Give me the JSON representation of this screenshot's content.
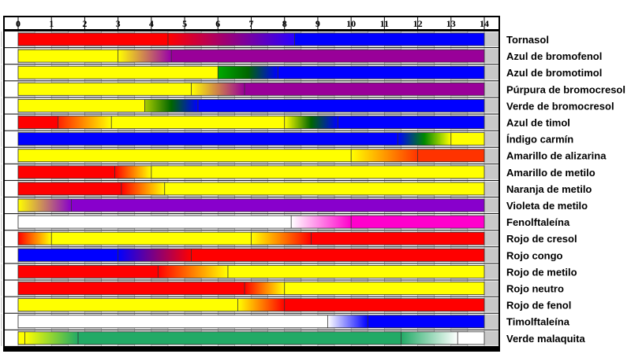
{
  "chart_data": {
    "type": "bar",
    "xlim": [
      0,
      14
    ],
    "xticks": [
      "0",
      "1",
      "2",
      "3",
      "4",
      "5",
      "6",
      "7",
      "8",
      "9",
      "10",
      "11",
      "12",
      "13",
      "14"
    ],
    "grid": true,
    "indicators": [
      {
        "name": "Tornasol",
        "segments": [
          {
            "from": 0,
            "to": 4.5,
            "colors": [
              "#ff0000"
            ]
          },
          {
            "from": 4.5,
            "to": 8.3,
            "colors": [
              "#ff0000",
              "#2a00ff"
            ]
          },
          {
            "from": 8.3,
            "to": 14,
            "colors": [
              "#0000ff"
            ]
          }
        ]
      },
      {
        "name": "Azul de bromofenol",
        "segments": [
          {
            "from": 0,
            "to": 3.0,
            "colors": [
              "#ffff00"
            ]
          },
          {
            "from": 3.0,
            "to": 4.6,
            "colors": [
              "#ffff00",
              "#9900aa"
            ]
          },
          {
            "from": 4.6,
            "to": 14,
            "colors": [
              "#990099"
            ]
          }
        ]
      },
      {
        "name": "Azul de bromotimol",
        "segments": [
          {
            "from": 0,
            "to": 6.0,
            "colors": [
              "#ffff00"
            ]
          },
          {
            "from": 6.0,
            "to": 7.8,
            "colors": [
              "#00aa00",
              "#006600",
              "#0000ff"
            ]
          },
          {
            "from": 7.8,
            "to": 14,
            "colors": [
              "#0000ff"
            ]
          }
        ]
      },
      {
        "name": "Púrpura de bromocresol",
        "segments": [
          {
            "from": 0,
            "to": 5.2,
            "colors": [
              "#ffff00"
            ]
          },
          {
            "from": 5.2,
            "to": 6.8,
            "colors": [
              "#ffff00",
              "#990099"
            ]
          },
          {
            "from": 6.8,
            "to": 14,
            "colors": [
              "#990099"
            ]
          }
        ]
      },
      {
        "name": "Verde de bromocresol",
        "segments": [
          {
            "from": 0,
            "to": 3.8,
            "colors": [
              "#ffff00"
            ]
          },
          {
            "from": 3.8,
            "to": 5.4,
            "colors": [
              "#aacc00",
              "#006600",
              "#0000ff"
            ]
          },
          {
            "from": 5.4,
            "to": 14,
            "colors": [
              "#0000ff"
            ]
          }
        ]
      },
      {
        "name": "Azul de timol",
        "segments": [
          {
            "from": 0,
            "to": 1.2,
            "colors": [
              "#ff0000"
            ]
          },
          {
            "from": 1.2,
            "to": 2.8,
            "colors": [
              "#ff2200",
              "#ffff00"
            ]
          },
          {
            "from": 2.8,
            "to": 8.0,
            "colors": [
              "#ffff00"
            ]
          },
          {
            "from": 8.0,
            "to": 9.6,
            "colors": [
              "#ffff00",
              "#006600",
              "#0000ff"
            ]
          },
          {
            "from": 9.6,
            "to": 14,
            "colors": [
              "#0000ff"
            ]
          }
        ]
      },
      {
        "name": "Índigo carmín",
        "segments": [
          {
            "from": 0,
            "to": 11.4,
            "colors": [
              "#0000ff"
            ]
          },
          {
            "from": 11.4,
            "to": 13.0,
            "colors": [
              "#0000ff",
              "#008800",
              "#ffff00"
            ]
          },
          {
            "from": 13.0,
            "to": 14,
            "colors": [
              "#ffff00"
            ]
          }
        ]
      },
      {
        "name": "Amarillo de alizarina",
        "segments": [
          {
            "from": 0,
            "to": 10.0,
            "colors": [
              "#ffff00"
            ]
          },
          {
            "from": 10.0,
            "to": 12.0,
            "colors": [
              "#ffff00",
              "#ff3300"
            ]
          },
          {
            "from": 12.0,
            "to": 14,
            "colors": [
              "#ff3300"
            ]
          }
        ]
      },
      {
        "name": "Amarillo de metilo",
        "segments": [
          {
            "from": 0,
            "to": 2.9,
            "colors": [
              "#ff0000"
            ]
          },
          {
            "from": 2.9,
            "to": 4.0,
            "colors": [
              "#ff0000",
              "#ffff00"
            ]
          },
          {
            "from": 4.0,
            "to": 14,
            "colors": [
              "#ffff00"
            ]
          }
        ]
      },
      {
        "name": "Naranja de metilo",
        "segments": [
          {
            "from": 0,
            "to": 3.1,
            "colors": [
              "#ff0000"
            ]
          },
          {
            "from": 3.1,
            "to": 4.4,
            "colors": [
              "#ff0000",
              "#ffff00"
            ]
          },
          {
            "from": 4.4,
            "to": 14,
            "colors": [
              "#ffff00"
            ]
          }
        ]
      },
      {
        "name": "Violeta de metilo",
        "segments": [
          {
            "from": 0,
            "to": 1.6,
            "colors": [
              "#ffff00",
              "#8800cc"
            ]
          },
          {
            "from": 1.6,
            "to": 14,
            "colors": [
              "#8800cc"
            ]
          }
        ]
      },
      {
        "name": "Fenolftaleína",
        "segments": [
          {
            "from": 0,
            "to": 8.2,
            "colors": [
              "#ffffff"
            ]
          },
          {
            "from": 8.2,
            "to": 10.0,
            "colors": [
              "#ffffff",
              "#ff00cc"
            ]
          },
          {
            "from": 10.0,
            "to": 14,
            "colors": [
              "#ff00cc"
            ]
          }
        ]
      },
      {
        "name": "Rojo de cresol",
        "segments": [
          {
            "from": 0,
            "to": 1.0,
            "colors": [
              "#ff0000",
              "#ffff00"
            ]
          },
          {
            "from": 1.0,
            "to": 7.0,
            "colors": [
              "#ffff00"
            ]
          },
          {
            "from": 7.0,
            "to": 8.8,
            "colors": [
              "#ffff00",
              "#ff0000"
            ]
          },
          {
            "from": 8.8,
            "to": 14,
            "colors": [
              "#ff0000"
            ]
          }
        ]
      },
      {
        "name": "Rojo congo",
        "segments": [
          {
            "from": 0,
            "to": 3.0,
            "colors": [
              "#0000ff"
            ]
          },
          {
            "from": 3.0,
            "to": 5.2,
            "colors": [
              "#0000ff",
              "#ff0000"
            ]
          },
          {
            "from": 5.2,
            "to": 14,
            "colors": [
              "#ff0000"
            ]
          }
        ]
      },
      {
        "name": "Rojo de metilo",
        "segments": [
          {
            "from": 0,
            "to": 4.2,
            "colors": [
              "#ff0000"
            ]
          },
          {
            "from": 4.2,
            "to": 6.3,
            "colors": [
              "#ff0000",
              "#ffff00"
            ]
          },
          {
            "from": 6.3,
            "to": 14,
            "colors": [
              "#ffff00"
            ]
          }
        ]
      },
      {
        "name": "Rojo neutro",
        "segments": [
          {
            "from": 0,
            "to": 6.8,
            "colors": [
              "#ff0000"
            ]
          },
          {
            "from": 6.8,
            "to": 8.0,
            "colors": [
              "#ff0000",
              "#ffff00"
            ]
          },
          {
            "from": 8.0,
            "to": 14,
            "colors": [
              "#ffff00"
            ]
          }
        ]
      },
      {
        "name": "Rojo de fenol",
        "segments": [
          {
            "from": 0,
            "to": 6.6,
            "colors": [
              "#ffff00"
            ]
          },
          {
            "from": 6.6,
            "to": 8.0,
            "colors": [
              "#ffff00",
              "#ff0000"
            ]
          },
          {
            "from": 8.0,
            "to": 14,
            "colors": [
              "#ff0000"
            ]
          }
        ]
      },
      {
        "name": "Timolftaleína",
        "segments": [
          {
            "from": 0,
            "to": 9.3,
            "colors": [
              "#ffffff"
            ]
          },
          {
            "from": 9.3,
            "to": 10.5,
            "colors": [
              "#ffffff",
              "#0000ff"
            ]
          },
          {
            "from": 10.5,
            "to": 14,
            "colors": [
              "#0000ff"
            ]
          }
        ]
      },
      {
        "name": "Verde malaquita",
        "segments": [
          {
            "from": 0,
            "to": 0.2,
            "colors": [
              "#ffff00"
            ]
          },
          {
            "from": 0.2,
            "to": 1.8,
            "colors": [
              "#ffff00",
              "#22aa66"
            ]
          },
          {
            "from": 1.8,
            "to": 11.5,
            "colors": [
              "#22aa66"
            ]
          },
          {
            "from": 11.5,
            "to": 13.2,
            "colors": [
              "#22aa66",
              "#ffffff"
            ]
          },
          {
            "from": 13.2,
            "to": 14,
            "colors": [
              "#ffffff"
            ]
          }
        ]
      }
    ]
  }
}
